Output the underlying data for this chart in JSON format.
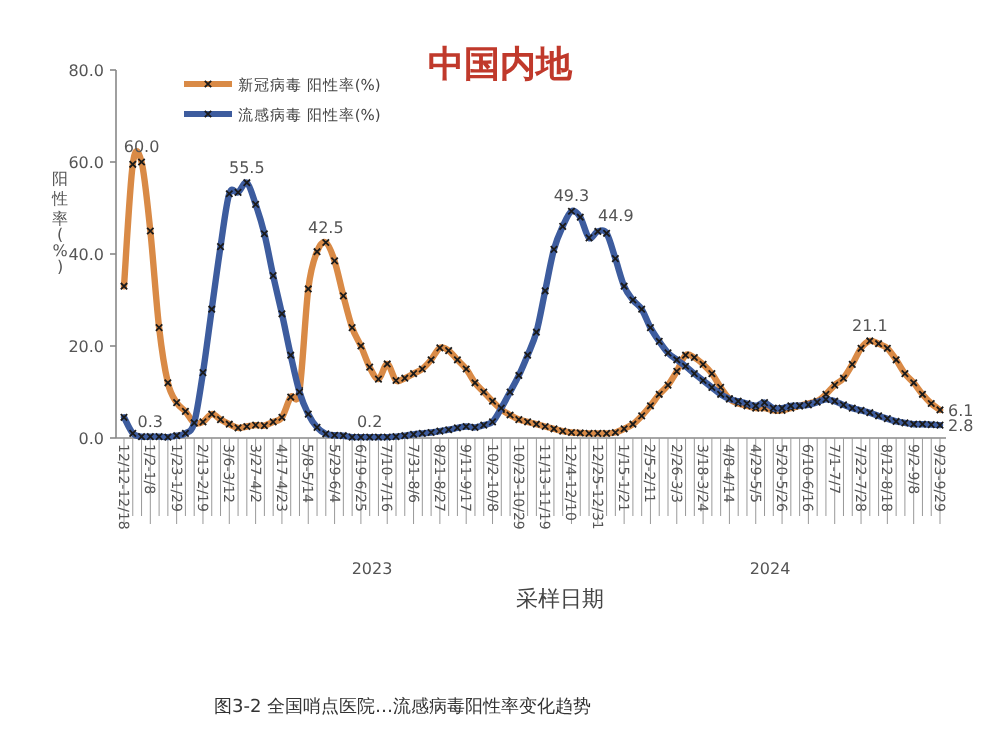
{
  "chart_data": {
    "type": "line",
    "title": "中国内地",
    "ylabel": "阳性率(%)",
    "xlabel": "采样日期",
    "annotations": [
      "2023",
      "2024",
      "图3-2 全国哨点医院…流感病毒阳性率变化趋势"
    ],
    "categories": [
      "12/12-12/18",
      null,
      null,
      "1/2-1/8",
      null,
      null,
      "1/23-1/29",
      null,
      null,
      "2/13-2/19",
      null,
      null,
      "3/6-3/12",
      null,
      null,
      "3/27-4/2",
      null,
      null,
      "4/17-4/23",
      null,
      null,
      "5/8-5/14",
      null,
      null,
      "5/29-6/4",
      null,
      null,
      "6/19-6/25",
      null,
      null,
      "7/10-7/16",
      null,
      null,
      "7/31-8/6",
      null,
      null,
      "8/21-8/27",
      null,
      null,
      "9/11-9/17",
      null,
      null,
      "10/2-10/8",
      null,
      null,
      "10/23-10/29",
      null,
      null,
      "11/13-11/19",
      null,
      null,
      "12/4-12/10",
      null,
      null,
      "12/25-12/31",
      null,
      null,
      "1/15-1/21",
      null,
      null,
      "2/5-2/11",
      null,
      null,
      "2/26-3/3",
      null,
      null,
      "3/18-3/24",
      null,
      null,
      "4/8-4/14",
      null,
      null,
      "4/29-5/5",
      null,
      null,
      "5/20-5/26",
      null,
      null,
      "6/10-6/16",
      null,
      null,
      "7/1-7/7",
      null,
      null,
      "7/22-7/28",
      null,
      null,
      "8/12-8/18",
      null,
      null,
      "9/2-9/8",
      null,
      null,
      "9/23-9/29"
    ],
    "series": [
      {
        "name": "新冠病毒 阳性率(%)",
        "color": "#d98a46",
        "values": [
          33,
          59.5,
          60.0,
          45,
          24,
          12,
          7.7,
          5.8,
          3.3,
          3.5,
          5.2,
          4,
          3,
          2.2,
          2.5,
          2.8,
          2.7,
          3.5,
          4.5,
          8.9,
          10.3,
          32.4,
          40.5,
          42.5,
          38.5,
          30.9,
          24,
          20,
          15.4,
          12.8,
          16.1,
          12.5,
          13,
          14,
          15,
          17,
          19.6,
          19,
          17,
          15,
          12,
          10,
          8,
          6.2,
          5,
          4,
          3.5,
          3,
          2.5,
          2,
          1.5,
          1.2,
          1.1,
          1,
          1,
          1,
          1.2,
          2,
          3,
          4.8,
          7,
          9.5,
          11.5,
          14.5,
          18,
          17.5,
          16,
          14,
          11,
          8.5,
          7.5,
          7,
          6.5,
          6.5,
          6,
          6,
          6.5,
          7,
          7.5,
          8,
          9.5,
          11.5,
          13,
          16,
          19.5,
          21.1,
          20.5,
          19.5,
          17,
          14,
          12,
          9.5,
          7.5,
          6.1
        ],
        "value_labels": [
          null,
          null,
          "60.0",
          null,
          null,
          null,
          null,
          null,
          null,
          null,
          null,
          null,
          null,
          null,
          null,
          null,
          null,
          null,
          null,
          null,
          null,
          null,
          null,
          "42.5",
          null,
          null,
          null,
          null,
          null,
          null,
          null,
          null,
          null,
          null,
          null,
          null,
          null,
          null,
          null,
          null,
          null,
          null,
          null,
          null,
          null,
          null,
          null,
          null,
          null,
          null,
          null,
          null,
          null,
          null,
          null,
          null,
          null,
          null,
          null,
          null,
          null,
          null,
          null,
          null,
          null,
          null,
          null,
          null,
          null,
          null,
          null,
          null,
          null,
          null,
          null,
          null,
          null,
          null,
          null,
          null,
          null,
          null,
          null,
          null,
          null,
          "21.1",
          null,
          null,
          null,
          null,
          null,
          null,
          null,
          "6.1"
        ]
      },
      {
        "name": "流感病毒 阳性率(%)",
        "color": "#3d5c9e",
        "values": [
          4.5,
          1,
          0.3,
          0.3,
          0.3,
          0.2,
          0.5,
          1,
          3.3,
          14.2,
          28,
          41.6,
          53.1,
          53.4,
          55.5,
          50.8,
          44.4,
          35.3,
          27,
          18,
          10,
          5.2,
          2.3,
          0.9,
          0.6,
          0.5,
          0.2,
          0.2,
          0.2,
          0.2,
          0.2,
          0.3,
          0.5,
          0.8,
          1,
          1.2,
          1.5,
          1.8,
          2.2,
          2.5,
          2.3,
          2.8,
          3.5,
          6.5,
          10,
          13.6,
          18,
          23,
          32,
          41,
          46,
          49.3,
          48,
          43.5,
          44.9,
          44.5,
          39,
          33,
          30,
          28,
          24,
          21,
          18.5,
          17,
          15.6,
          14,
          12.5,
          11,
          9.5,
          8.5,
          8,
          7.5,
          7,
          7.7,
          6.5,
          6.5,
          7,
          7,
          7.2,
          7.8,
          8.4,
          8,
          7.2,
          6.5,
          6,
          5.5,
          4.8,
          4.2,
          3.6,
          3.3,
          3,
          3,
          2.9,
          2.8
        ],
        "value_labels": [
          null,
          null,
          null,
          "0.3",
          null,
          null,
          null,
          null,
          null,
          null,
          null,
          null,
          null,
          null,
          "55.5",
          null,
          null,
          null,
          null,
          null,
          null,
          null,
          null,
          null,
          null,
          null,
          null,
          null,
          "0.2",
          null,
          null,
          null,
          null,
          null,
          null,
          null,
          null,
          null,
          null,
          null,
          null,
          null,
          null,
          null,
          null,
          null,
          null,
          null,
          null,
          null,
          null,
          "49.3",
          null,
          null,
          "44.9",
          null,
          null,
          null,
          null,
          null,
          null,
          null,
          null,
          null,
          null,
          null,
          null,
          null,
          null,
          null,
          null,
          null,
          null,
          null,
          null,
          null,
          null,
          null,
          null,
          null,
          null,
          null,
          null,
          null,
          null,
          null,
          null,
          null,
          null,
          null,
          null,
          null,
          null,
          "2.8"
        ]
      }
    ],
    "ylim": [
      0,
      80
    ],
    "yticks": [
      {
        "value": 0,
        "label": "0.0"
      },
      {
        "value": 20,
        "label": "20.0"
      },
      {
        "value": 40,
        "label": "40.0"
      },
      {
        "value": 60,
        "label": "60.0"
      },
      {
        "value": 80,
        "label": "80.0"
      }
    ],
    "legend": "top left",
    "marker": "cross",
    "line_style": "solid"
  }
}
